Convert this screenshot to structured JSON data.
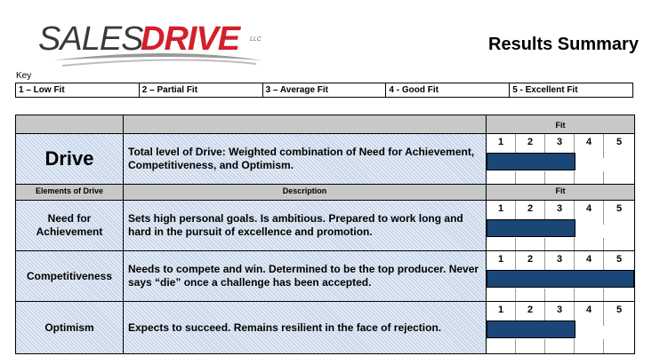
{
  "logo": {
    "sales": "SALES",
    "drive": "DRIVE",
    "llc": "LLC"
  },
  "page_title": "Results Summary",
  "key": {
    "label": "Key",
    "items": [
      "1 – Low Fit",
      "2 – Partial Fit",
      "3 – Average Fit",
      "4 - Good Fit",
      "5 - Excellent Fit"
    ]
  },
  "scale": [
    "1",
    "2",
    "3",
    "4",
    "5"
  ],
  "results": {
    "fit_header": "Fit",
    "drive": {
      "name": "Drive",
      "description": "Total level of Drive: Weighted combination of Need for Achievement, Competitiveness, and Optimism.",
      "score": 3
    },
    "columns": {
      "elements": "Elements of Drive",
      "description": "Description",
      "fit": "Fit"
    },
    "elements": [
      {
        "name": "Need for Achievement",
        "description": "Sets high personal goals.  Is ambitious.  Prepared to work long and hard in the pursuit of excellence and promotion.",
        "score": 3
      },
      {
        "name": "Competitiveness",
        "description": "Needs to compete and win.  Determined to be the top producer.  Never says “die” once a challenge has been accepted.",
        "score": 5
      },
      {
        "name": "Optimism",
        "description": "Expects to succeed. Remains resilient in the face of rejection.",
        "score": 3
      }
    ]
  },
  "colors": {
    "bar": "#1b4678",
    "brand_red": "#d2202a",
    "brand_gray": "#3a3a3a",
    "header_gray": "#c8c8c8",
    "hatch_blue": "#c9d7ea"
  }
}
